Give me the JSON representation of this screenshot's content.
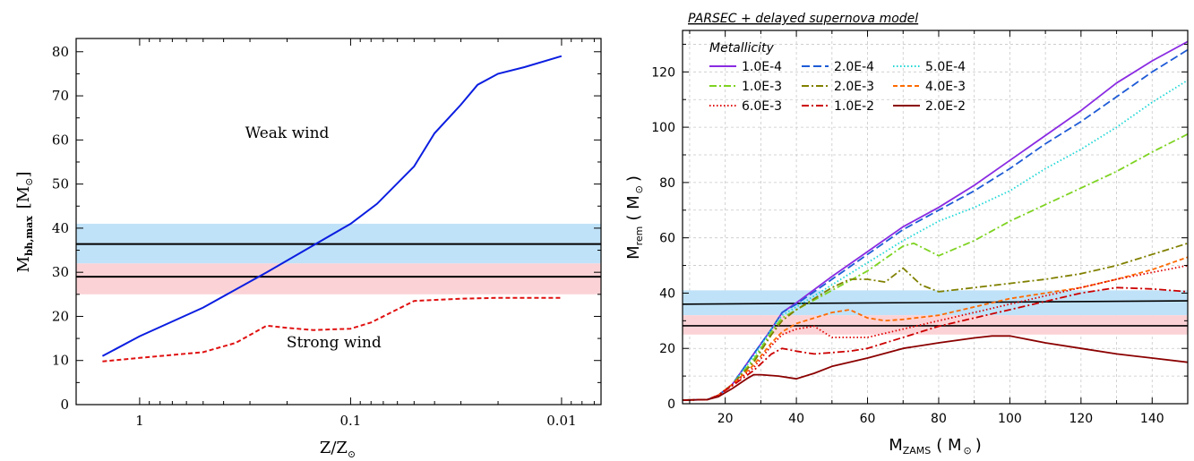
{
  "chart_data": [
    {
      "type": "line",
      "xlabel": "Z/Z",
      "xlabel_symbol": "⊙",
      "ylabel": "M",
      "ylabel_sub": "bh,max",
      "ylabel_unit": "[M",
      "ylabel_unit_symbol": "⊙",
      "ylabel_unit_close": "]",
      "x_scale": "log",
      "x_reversed": true,
      "xlim": [
        2.0,
        0.0065
      ],
      "ylim": [
        0,
        83
      ],
      "x_ticks": [
        {
          "value": 1,
          "label": "1"
        },
        {
          "value": 0.1,
          "label": "0.1"
        },
        {
          "value": 0.01,
          "label": "0.01"
        }
      ],
      "y_ticks": [
        0,
        10,
        20,
        30,
        40,
        50,
        60,
        70,
        80
      ],
      "bands": [
        {
          "from": 32,
          "to": 41,
          "color": "#bfe2f8"
        },
        {
          "from": 25,
          "to": 32,
          "color": "#fbd3d6"
        }
      ],
      "hlines": [
        {
          "y": 36.4,
          "color": "#000000"
        },
        {
          "y": 29.0,
          "color": "#000000"
        }
      ],
      "series": [
        {
          "name": "Weak wind",
          "color": "#0b1ee0",
          "dash": "solid",
          "x": [
            1.5,
            1.0,
            0.5,
            0.25,
            0.1,
            0.075,
            0.05,
            0.04,
            0.03,
            0.025,
            0.02,
            0.015,
            0.01
          ],
          "y": [
            11,
            15.5,
            22,
            30,
            41,
            45.5,
            54,
            61.5,
            68,
            72.5,
            75,
            76.5,
            79
          ]
        },
        {
          "name": "Strong wind",
          "color": "#e01010",
          "dash": "dashed",
          "x": [
            1.5,
            1.0,
            0.5,
            0.35,
            0.25,
            0.2,
            0.15,
            0.1,
            0.08,
            0.05,
            0.03,
            0.02,
            0.01
          ],
          "y": [
            9.8,
            10.6,
            11.9,
            14,
            17.9,
            17.4,
            16.9,
            17.2,
            18.6,
            23.5,
            24,
            24.2,
            24.2
          ]
        }
      ],
      "annotations": [
        {
          "text": "Weak wind",
          "x": 0.2,
          "y": 60.5
        },
        {
          "text": "Strong wind",
          "x": 0.12,
          "y": 13
        }
      ]
    },
    {
      "type": "line",
      "title": "PARSEC + delayed supernova model",
      "xlabel": "M",
      "xlabel_sub": "ZAMS",
      "xlabel_unit": "( M",
      "xlabel_unit_symbol": "⊙",
      "xlabel_unit_close": ")",
      "ylabel": "M",
      "ylabel_sub": "rem",
      "ylabel_unit": "( M",
      "ylabel_unit_symbol": "⊙",
      "ylabel_unit_close": ")",
      "xlim": [
        8,
        150
      ],
      "ylim": [
        0,
        135
      ],
      "x_ticks": [
        20,
        40,
        60,
        80,
        100,
        120,
        140
      ],
      "y_ticks": [
        0,
        20,
        40,
        60,
        80,
        100,
        120
      ],
      "grid": true,
      "legend_title": "Metallicity",
      "legend_position": "top-left",
      "bands": [
        {
          "from": 32,
          "to": 41,
          "color": "#bfe2f8"
        },
        {
          "from": 25,
          "to": 32,
          "color": "#fbd3d6"
        }
      ],
      "hlines": [
        {
          "x": [
            8,
            150
          ],
          "y": [
            36,
            37.2
          ],
          "color": "#000000"
        },
        {
          "x": [
            8,
            150
          ],
          "y": [
            28.2,
            28.2
          ],
          "color": "#000000"
        }
      ],
      "series": [
        {
          "name": "1.0E-4",
          "color": "#8a2be2",
          "dash": "solid",
          "x": [
            8,
            15,
            18,
            22,
            28,
            33,
            36,
            40,
            50,
            60,
            70,
            80,
            90,
            100,
            110,
            120,
            130,
            140,
            150
          ],
          "y": [
            1.3,
            1.5,
            3,
            7,
            18,
            27,
            33,
            36.5,
            46,
            55,
            64,
            71,
            79,
            88,
            97,
            106,
            116,
            124,
            131
          ]
        },
        {
          "name": "2.0E-4",
          "color": "#1e5bd6",
          "dash": "longdash",
          "x": [
            8,
            15,
            18,
            22,
            28,
            33,
            36,
            40,
            50,
            60,
            70,
            80,
            90,
            100,
            110,
            120,
            130,
            140,
            150
          ],
          "y": [
            1.3,
            1.5,
            3,
            7,
            18,
            27,
            33,
            36,
            45,
            54,
            63,
            70,
            77,
            85,
            94,
            102,
            111,
            120,
            128
          ]
        },
        {
          "name": "5.0E-4",
          "color": "#1ed6d6",
          "dash": "dotted",
          "x": [
            8,
            15,
            18,
            22,
            28,
            33,
            36,
            40,
            50,
            60,
            70,
            80,
            90,
            100,
            110,
            120,
            130,
            140,
            150
          ],
          "y": [
            1.3,
            1.5,
            3,
            7,
            17,
            27,
            32,
            35,
            43,
            51,
            59,
            66,
            71,
            77,
            85,
            92,
            100,
            109,
            117
          ]
        },
        {
          "name": "1.0E-3",
          "color": "#7ed321",
          "dash": "dashdot",
          "x": [
            8,
            15,
            18,
            22,
            28,
            33,
            36,
            40,
            50,
            60,
            70,
            73,
            80,
            90,
            100,
            110,
            120,
            130,
            140,
            150
          ],
          "y": [
            1.3,
            1.5,
            3,
            7,
            16,
            26,
            31,
            34,
            41,
            48,
            57,
            58,
            53.5,
            59,
            66,
            72,
            78,
            84,
            91,
            97.5
          ]
        },
        {
          "name": "2.0E-3",
          "color": "#808000",
          "dash": "dashdot",
          "x": [
            8,
            15,
            18,
            22,
            28,
            33,
            36,
            40,
            45,
            50,
            55,
            60,
            65,
            70,
            75,
            80,
            90,
            100,
            110,
            120,
            130,
            140,
            150
          ],
          "y": [
            1.3,
            1.5,
            3,
            7,
            15,
            25,
            30,
            34,
            38,
            42,
            45,
            45,
            44,
            49,
            43,
            40.5,
            42,
            43.5,
            45,
            47,
            50,
            54,
            58
          ]
        },
        {
          "name": "4.0E-3",
          "color": "#ff6a00",
          "dash": "shortdash",
          "x": [
            8,
            15,
            18,
            22,
            28,
            33,
            36,
            40,
            45,
            50,
            55,
            60,
            65,
            70,
            80,
            90,
            100,
            110,
            120,
            130,
            140,
            150
          ],
          "y": [
            1.3,
            1.5,
            3,
            7,
            14,
            22,
            26,
            29,
            31,
            33,
            34,
            31,
            30,
            30.5,
            32,
            35,
            38,
            40,
            42,
            45,
            48.5,
            53
          ]
        },
        {
          "name": "6.0E-3",
          "color": "#e00000",
          "dash": "dotted",
          "x": [
            8,
            15,
            18,
            22,
            28,
            33,
            36,
            40,
            45,
            50,
            55,
            60,
            70,
            80,
            90,
            100,
            110,
            120,
            130,
            140,
            150
          ],
          "y": [
            1.3,
            1.5,
            3,
            7,
            13,
            21,
            25,
            27,
            28,
            24,
            24,
            24,
            27,
            30,
            33,
            36,
            39,
            42,
            45,
            47.5,
            50
          ]
        },
        {
          "name": "1.0E-2",
          "color": "#cc0000",
          "dash": "dashdot",
          "x": [
            8,
            15,
            18,
            22,
            28,
            33,
            36,
            40,
            45,
            50,
            55,
            60,
            70,
            80,
            90,
            100,
            110,
            120,
            130,
            140,
            150
          ],
          "y": [
            1.3,
            1.5,
            3,
            6.5,
            12,
            18,
            20,
            19,
            18,
            18.5,
            19,
            20,
            24,
            28,
            31,
            34,
            37,
            40,
            42,
            41.5,
            40.5
          ]
        },
        {
          "name": "2.0E-2",
          "color": "#8b0000",
          "dash": "solid",
          "x": [
            8,
            15,
            18,
            22,
            26,
            28,
            30,
            35,
            40,
            45,
            50,
            60,
            70,
            80,
            90,
            95,
            100,
            110,
            120,
            130,
            140,
            150
          ],
          "y": [
            1.3,
            1.5,
            2.5,
            5.5,
            9,
            10.5,
            10.5,
            10,
            9,
            11,
            13.5,
            16.5,
            20,
            22,
            23.8,
            24.5,
            24.5,
            22,
            20,
            18,
            16.5,
            15
          ]
        }
      ]
    }
  ]
}
